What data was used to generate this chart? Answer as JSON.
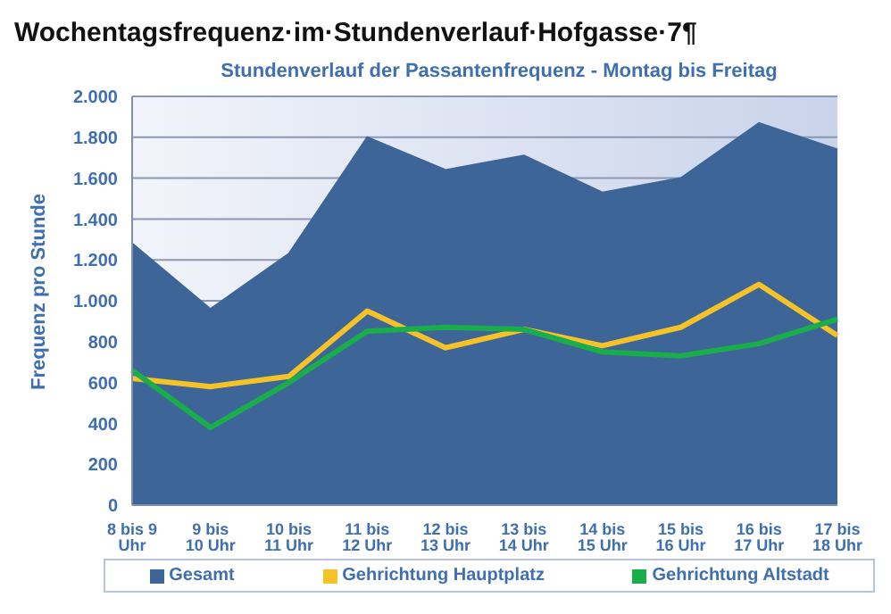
{
  "chart_data": {
    "type": "area",
    "title": "Wochentagsfrequenz·im·Stundenverlauf·Hofgasse·7¶",
    "subtitle": "Stundenverlauf der Passantenfrequenz - Montag bis Freitag",
    "ylabel": "Frequenz pro Stunde",
    "categories": [
      "8 bis 9 Uhr",
      "9 bis 10 Uhr",
      "10 bis 11 Uhr",
      "11 bis 12 Uhr",
      "12 bis 13 Uhr",
      "13 bis 14 Uhr",
      "14 bis 15 Uhr",
      "15 bis 16 Uhr",
      "16 bis 17 Uhr",
      "17 bis 18 Uhr"
    ],
    "series": [
      {
        "name": "Gesamt",
        "color": "#3d6598",
        "values": [
          1280,
          960,
          1230,
          1800,
          1640,
          1710,
          1530,
          1600,
          1870,
          1740
        ]
      },
      {
        "name": "Gehrichtung Hauptplatz",
        "type": "line",
        "color": "#f5c228",
        "values": [
          620,
          580,
          630,
          950,
          770,
          860,
          780,
          870,
          1080,
          830
        ]
      },
      {
        "name": "Gehrichtung Altstadt",
        "type": "line",
        "color": "#1aad4b",
        "values": [
          660,
          380,
          600,
          850,
          870,
          860,
          750,
          730,
          790,
          910
        ]
      }
    ],
    "ylim": [
      0,
      2000
    ],
    "yticks": [
      {
        "value": 0,
        "label": "0"
      },
      {
        "value": 200,
        "label": "200"
      },
      {
        "value": 400,
        "label": "400"
      },
      {
        "value": 600,
        "label": "600"
      },
      {
        "value": 800,
        "label": "800"
      },
      {
        "value": 1000,
        "label": "1.000"
      },
      {
        "value": 1200,
        "label": "1.200"
      },
      {
        "value": 1400,
        "label": "1.400"
      },
      {
        "value": 1600,
        "label": "1.600"
      },
      {
        "value": 1800,
        "label": "1.800"
      },
      {
        "value": 2000,
        "label": "2.000"
      }
    ],
    "grid": "y",
    "legend": "bottom",
    "marker": "none",
    "line_style": "solid"
  }
}
